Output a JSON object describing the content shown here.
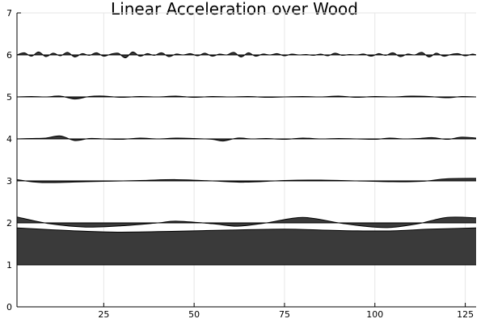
{
  "chart_data": {
    "type": "area",
    "title": "Linear Acceleration over Wood",
    "xlabel": "",
    "ylabel": "",
    "xlim": [
      1,
      128
    ],
    "ylim": [
      0,
      7
    ],
    "grid": true,
    "legend": "none",
    "x_ticks": [
      25,
      50,
      75,
      100,
      125
    ],
    "y_ticks": [
      0,
      1,
      2,
      3,
      4,
      5,
      6,
      7
    ],
    "fill_color": "#3a3a3a",
    "line_color": "#000000",
    "grid_color": "#e6e6e6",
    "series": [
      {
        "baseline": 1,
        "x": [
          1,
          10,
          20,
          30,
          45,
          60,
          75,
          85,
          95,
          105,
          115,
          128
        ],
        "values": [
          1.88,
          1.84,
          1.8,
          1.78,
          1.8,
          1.83,
          1.85,
          1.83,
          1.81,
          1.81,
          1.85,
          1.88
        ]
      },
      {
        "baseline": 2,
        "x": [
          1,
          10,
          20,
          30,
          40,
          45,
          55,
          62,
          70,
          80,
          90,
          97,
          104,
          112,
          120,
          128
        ],
        "values": [
          2.14,
          1.98,
          1.9,
          1.93,
          2.0,
          2.04,
          1.98,
          1.92,
          2.0,
          2.13,
          2.0,
          1.92,
          1.89,
          1.98,
          2.13,
          2.12
        ]
      },
      {
        "baseline": 3,
        "x": [
          1,
          8,
          20,
          35,
          45,
          55,
          64,
          75,
          85,
          95,
          105,
          113,
          120,
          128
        ],
        "values": [
          3.03,
          2.96,
          2.98,
          3.01,
          3.03,
          3.0,
          2.97,
          3.01,
          3.02,
          3.0,
          2.98,
          2.99,
          3.05,
          3.06
        ]
      },
      {
        "baseline": 4,
        "x": [
          1,
          5,
          9,
          13,
          17,
          21,
          25,
          30,
          35,
          40,
          45,
          50,
          55,
          58,
          62,
          66,
          70,
          75,
          80,
          85,
          90,
          95,
          100,
          104,
          108,
          112,
          116,
          120,
          124,
          128
        ],
        "values": [
          4.0,
          4.01,
          4.02,
          4.07,
          3.96,
          4.01,
          4.0,
          3.99,
          4.02,
          4.0,
          4.02,
          4.01,
          3.99,
          3.95,
          4.02,
          4.0,
          4.01,
          3.99,
          4.02,
          4.0,
          4.01,
          4.0,
          3.99,
          4.02,
          4.0,
          4.01,
          4.03,
          3.99,
          4.04,
          4.02
        ]
      },
      {
        "baseline": 5,
        "x": [
          1,
          5,
          9,
          13,
          17,
          21,
          25,
          30,
          35,
          40,
          45,
          50,
          55,
          60,
          65,
          70,
          75,
          80,
          85,
          90,
          95,
          100,
          105,
          110,
          115,
          120,
          124,
          128
        ],
        "values": [
          5.0,
          5.01,
          5.0,
          5.02,
          4.95,
          5.01,
          5.02,
          4.99,
          5.01,
          5.0,
          5.02,
          4.99,
          5.01,
          5.0,
          5.01,
          4.99,
          5.0,
          5.01,
          5.0,
          5.02,
          4.99,
          5.01,
          5.0,
          5.02,
          5.01,
          4.98,
          5.01,
          5.0
        ]
      },
      {
        "baseline": 6,
        "x": [
          1,
          3,
          5,
          7,
          9,
          11,
          13,
          15,
          17,
          19,
          21,
          23,
          25,
          27,
          29,
          31,
          33,
          35,
          37,
          39,
          41,
          43,
          45,
          47,
          49,
          51,
          53,
          55,
          57,
          59,
          61,
          63,
          65,
          67,
          69,
          71,
          73,
          75,
          77,
          79,
          81,
          83,
          85,
          87,
          89,
          91,
          93,
          95,
          97,
          99,
          101,
          103,
          105,
          107,
          109,
          111,
          113,
          115,
          117,
          119,
          121,
          123,
          125,
          127,
          128
        ],
        "values": [
          6.0,
          6.05,
          5.97,
          6.07,
          5.96,
          6.04,
          5.98,
          6.06,
          5.95,
          6.03,
          5.99,
          6.05,
          5.97,
          6.02,
          6.04,
          5.93,
          6.07,
          5.97,
          6.03,
          5.99,
          6.05,
          5.96,
          6.02,
          6.0,
          6.03,
          5.98,
          6.04,
          5.97,
          6.02,
          6.0,
          6.06,
          5.95,
          6.05,
          5.97,
          6.02,
          6.0,
          6.03,
          5.98,
          6.02,
          6.0,
          6.01,
          5.99,
          6.02,
          5.98,
          6.04,
          5.99,
          6.01,
          6.0,
          6.02,
          5.97,
          6.03,
          5.99,
          6.05,
          5.96,
          6.02,
          6.0,
          6.06,
          5.95,
          6.04,
          5.97,
          6.01,
          6.03,
          5.98,
          6.02,
          6.0
        ]
      }
    ]
  }
}
